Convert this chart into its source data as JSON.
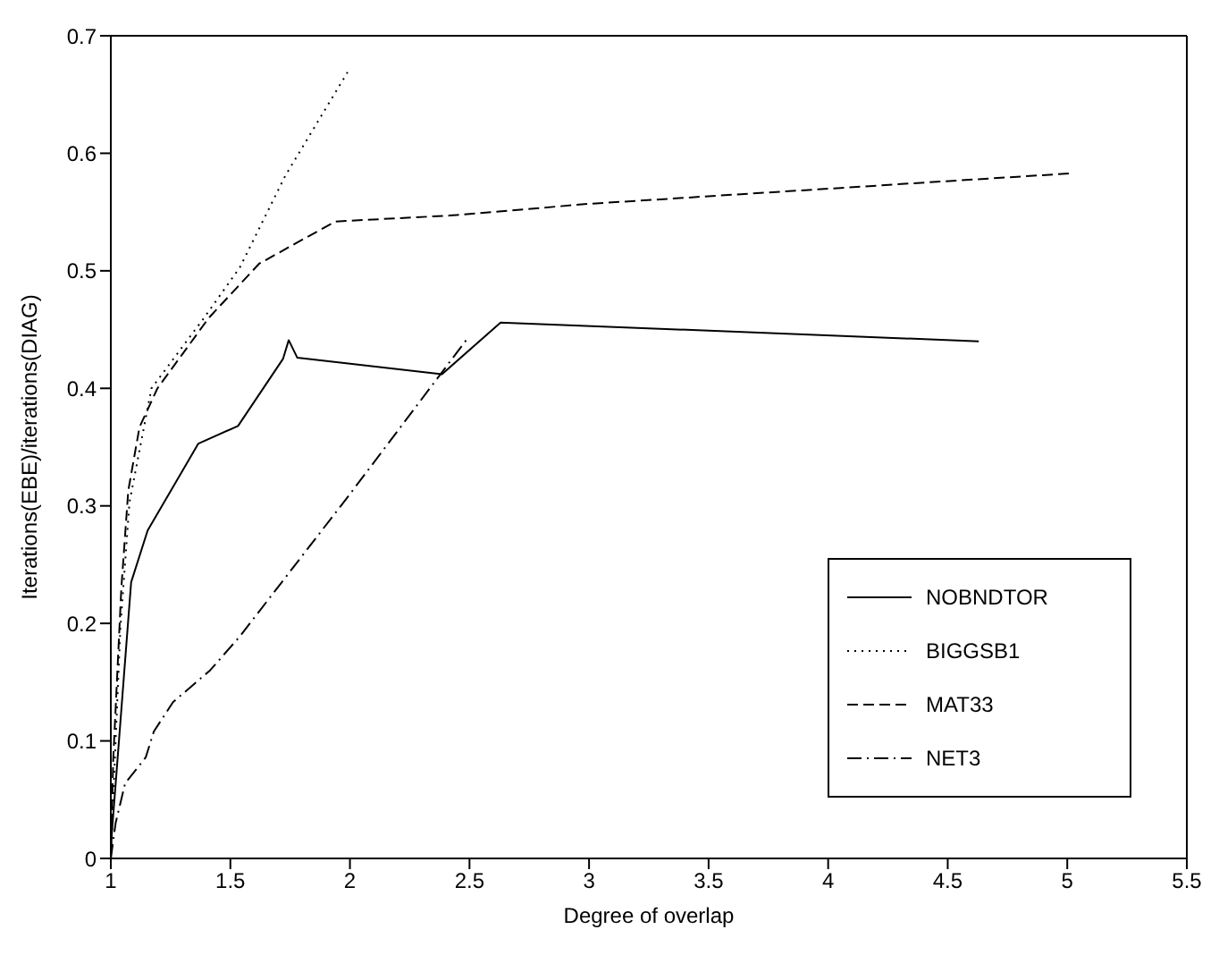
{
  "chart_data": {
    "type": "line",
    "xlabel": "Degree of overlap",
    "ylabel": "Iterations(EBE)/iterations(DIAG)",
    "xlim": [
      1,
      5.5
    ],
    "xticks": [
      1,
      1.5,
      2,
      2.5,
      3,
      3.5,
      4,
      4.5,
      5,
      5.5
    ],
    "ylim": [
      0,
      0.7
    ],
    "yticks": [
      0,
      0.1,
      0.2,
      0.3,
      0.4,
      0.5,
      0.6,
      0.7
    ],
    "legend": "bottom right",
    "marker": "none",
    "series": [
      {
        "name": "NOBNDTOR",
        "color": "#000000",
        "line_style": "solid",
        "x": [
          1,
          1.085,
          1.154,
          1.366,
          1.532,
          1.72,
          1.744,
          1.78,
          2.385,
          2.63,
          4.63
        ],
        "values": [
          0.01,
          0.235,
          0.279,
          0.353,
          0.368,
          0.425,
          0.441,
          0.426,
          0.412,
          0.456,
          0.44
        ]
      },
      {
        "name": "BIGGSB1",
        "color": "#000000",
        "line_style": "dotted",
        "x": [
          1,
          1.02,
          1.04,
          1.078,
          1.17,
          1.39,
          1.54,
          1.73,
          1.99
        ],
        "values": [
          0,
          0.1,
          0.196,
          0.303,
          0.4,
          0.46,
          0.503,
          0.581,
          0.669
        ]
      },
      {
        "name": "MAT33",
        "color": "#000000",
        "line_style": "dashed",
        "x": [
          1,
          1.01,
          1.044,
          1.073,
          1.12,
          1.195,
          1.41,
          1.62,
          1.77,
          1.94,
          2.415,
          3.0,
          5.02
        ],
        "values": [
          0,
          0.084,
          0.23,
          0.313,
          0.367,
          0.4,
          0.46,
          0.506,
          0.523,
          0.542,
          0.547,
          0.557,
          0.583
        ]
      },
      {
        "name": "NET3",
        "color": "#000000",
        "line_style": "dashdot",
        "x": [
          1,
          1.02,
          1.06,
          1.146,
          1.18,
          1.26,
          1.415,
          1.54,
          2.0,
          2.49
        ],
        "values": [
          0,
          0.03,
          0.064,
          0.086,
          0.108,
          0.133,
          0.16,
          0.189,
          0.31,
          0.442
        ]
      }
    ]
  }
}
